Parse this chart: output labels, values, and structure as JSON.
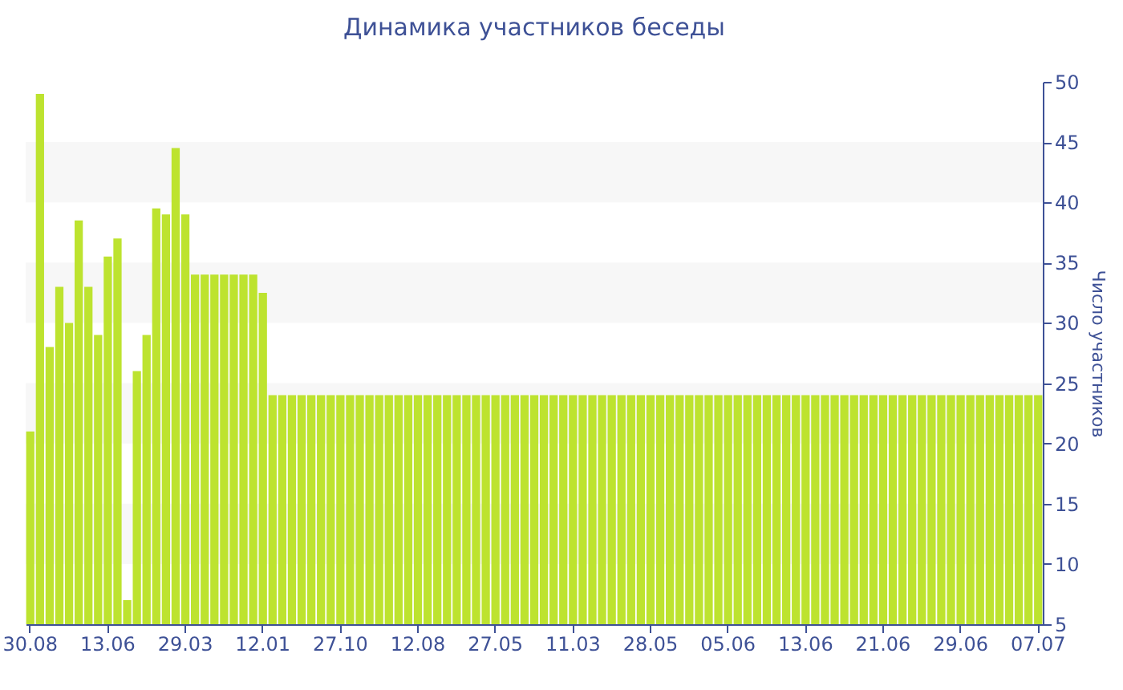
{
  "chart_data": {
    "type": "bar",
    "title": "Динамика участников беседы",
    "ylabel": "Число участников",
    "categories": [
      "30.08",
      null,
      null,
      null,
      null,
      null,
      null,
      null,
      "13.06",
      null,
      null,
      null,
      null,
      null,
      null,
      null,
      "29.03",
      null,
      null,
      null,
      null,
      null,
      null,
      null,
      "12.01",
      null,
      null,
      null,
      null,
      null,
      null,
      null,
      "27.10",
      null,
      null,
      null,
      null,
      null,
      null,
      null,
      "12.08",
      null,
      null,
      null,
      null,
      null,
      null,
      null,
      "27.05",
      null,
      null,
      null,
      null,
      null,
      null,
      null,
      "11.03",
      null,
      null,
      null,
      null,
      null,
      null,
      null,
      "28.05",
      null,
      null,
      null,
      null,
      null,
      null,
      null,
      "05.06",
      null,
      null,
      null,
      null,
      null,
      null,
      null,
      "13.06",
      null,
      null,
      null,
      null,
      null,
      null,
      null,
      "21.06",
      null,
      null,
      null,
      null,
      null,
      null,
      null,
      "29.06",
      null,
      null,
      null,
      null,
      null,
      null,
      null,
      "07.07"
    ],
    "values": [
      21,
      49,
      28,
      33,
      30,
      38.5,
      33,
      29,
      35.5,
      37,
      7,
      26,
      29,
      39.5,
      39,
      44.5,
      39,
      34,
      34,
      34,
      34,
      34,
      34,
      34,
      32.5,
      24,
      24,
      24,
      24,
      24,
      24,
      24,
      24,
      24,
      24,
      24,
      24,
      24,
      24,
      24,
      24,
      24,
      24,
      24,
      24,
      24,
      24,
      24,
      24,
      24,
      24,
      24,
      24,
      24,
      24,
      24,
      24,
      24,
      24,
      24,
      24,
      24,
      24,
      24,
      24,
      24,
      24,
      24,
      24,
      24,
      24,
      24,
      24,
      24,
      24,
      24,
      24,
      24,
      24,
      24,
      24,
      24,
      24,
      24,
      24,
      24,
      24,
      24,
      24,
      24,
      24,
      24,
      24,
      24,
      24,
      24,
      24,
      24,
      24,
      24,
      24,
      24,
      24,
      24,
      24
    ],
    "color": "#bde32f",
    "ylim": [
      5,
      50
    ],
    "yticks": [
      5,
      10,
      15,
      20,
      25,
      30,
      35,
      40,
      45,
      50
    ],
    "bands": [
      {
        "axis": "y",
        "from": 10,
        "to": 15,
        "color": "#f7f7f7"
      },
      {
        "axis": "y",
        "from": 20,
        "to": 25,
        "color": "#f7f7f7"
      },
      {
        "axis": "y",
        "from": 30,
        "to": 35,
        "color": "#f7f7f7"
      },
      {
        "axis": "y",
        "from": 40,
        "to": 45,
        "color": "#f7f7f7"
      }
    ],
    "grid": false
  }
}
